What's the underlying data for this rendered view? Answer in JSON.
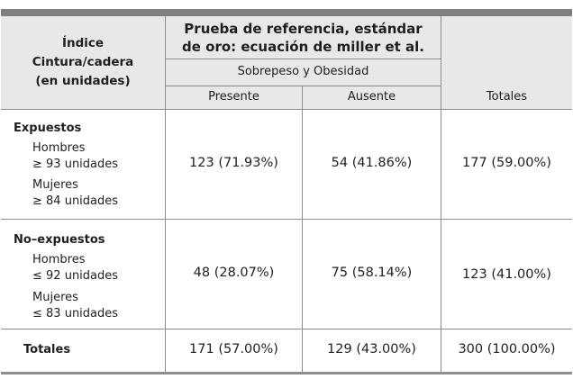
{
  "header": {
    "index_label": "Índice\nCintura/cadera\n(en unidades)",
    "reference_title": "Prueba de referencia, estándar\nde oro: ecuación de miller et al.",
    "subgroup_label": "Sobrepeso y Obesidad",
    "columns": {
      "present": "Presente",
      "absent": "Ausente",
      "totals": "Totales"
    }
  },
  "rows": {
    "exposed": {
      "label": "Expuestos",
      "men": "Hombres\n≥ 93 unidades",
      "women": "Mujeres\n≥ 84 unidades",
      "present": "123 (71.93%)",
      "absent": "54 (41.86%)",
      "total": "177 (59.00%)"
    },
    "not_exposed": {
      "label": "No–expuestos",
      "men": "Hombres\n≤ 92 unidades",
      "women": "Mujeres\n≤ 83 unidades",
      "present": "48 (28.07%)",
      "absent": "75 (58.14%)",
      "total": "123 (41.00%)"
    },
    "totals": {
      "label": "Totales",
      "present": "171 (57.00%)",
      "absent": "129 (43.00%)",
      "total": "300 (100.00%)"
    }
  }
}
